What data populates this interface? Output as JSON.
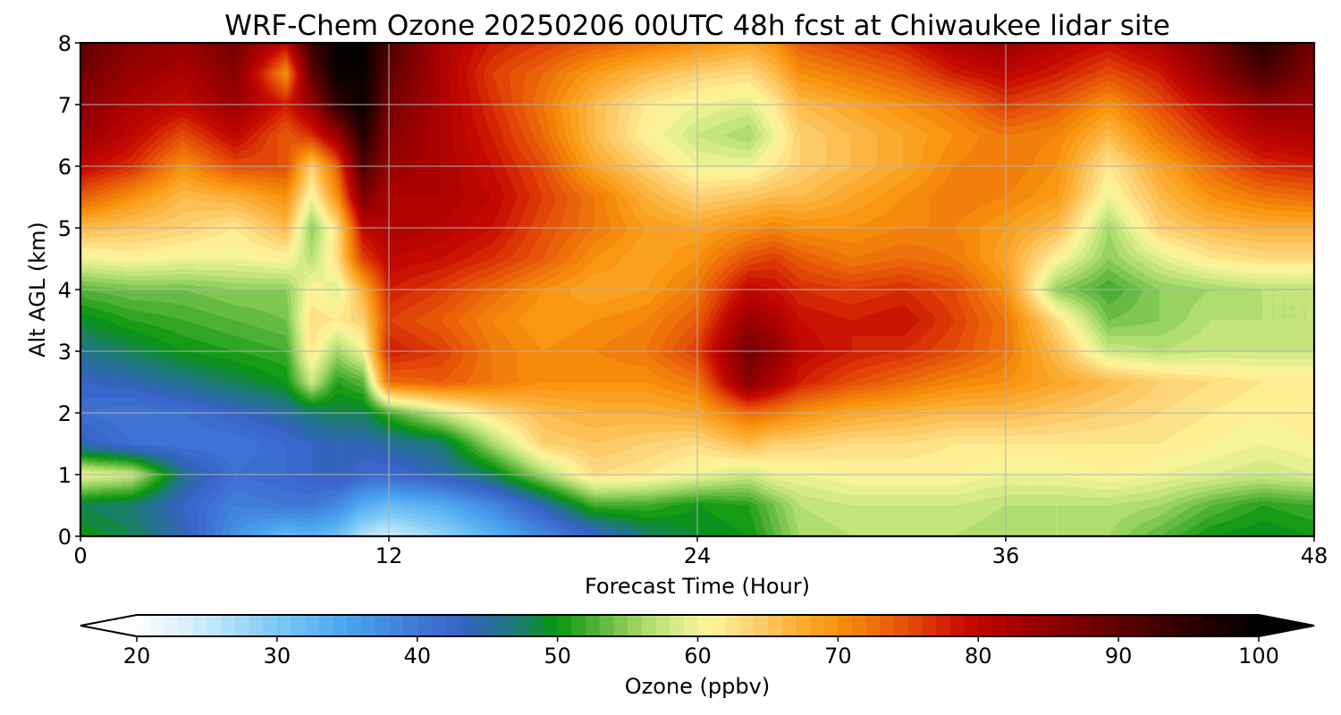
{
  "chart_data": {
    "type": "heatmap",
    "title": "WRF-Chem Ozone  20250206 00UTC 48h fcst at Chiwaukee lidar site",
    "xlabel": "Forecast Time (Hour)",
    "ylabel": "Alt AGL (km)",
    "xlim": [
      0,
      48
    ],
    "ylim": [
      0,
      8
    ],
    "x_ticks": [
      "0",
      "12",
      "24",
      "36",
      "48"
    ],
    "y_ticks": [
      "0",
      "1",
      "2",
      "3",
      "4",
      "5",
      "6",
      "7",
      "8"
    ],
    "grid": true,
    "x_hours": [
      0,
      2,
      4,
      6,
      8,
      9,
      10,
      11,
      12,
      14,
      16,
      18,
      20,
      22,
      24,
      26,
      27,
      28,
      30,
      32,
      34,
      36,
      38,
      40,
      42,
      44,
      46,
      48
    ],
    "alt_km": [
      0,
      0.5,
      1,
      1.5,
      2,
      2.5,
      3,
      3.5,
      4,
      4.5,
      5,
      5.5,
      6,
      6.5,
      7,
      7.5,
      8
    ],
    "ozone_ppbv": [
      [
        50,
        48,
        44,
        37,
        32,
        33,
        31,
        26,
        24,
        28,
        33,
        38,
        42,
        47,
        49,
        50,
        53,
        56,
        57,
        57,
        57,
        56,
        57,
        56,
        53,
        50,
        49,
        50
      ],
      [
        48,
        47,
        43,
        39,
        40,
        40,
        38,
        34,
        32,
        34,
        38,
        44,
        52,
        52,
        50,
        51,
        54,
        57,
        58,
        58,
        58,
        57,
        57,
        57,
        56,
        53,
        51,
        52
      ],
      [
        60,
        58,
        46,
        41,
        42,
        43,
        44,
        42,
        42,
        44,
        48,
        56,
        63,
        62,
        60,
        58,
        60,
        60,
        61,
        61,
        61,
        60,
        60,
        61,
        60,
        59,
        58,
        59
      ],
      [
        44,
        41,
        40,
        40,
        42,
        43,
        44,
        44,
        45,
        47,
        56,
        64,
        65,
        64,
        63,
        66,
        64,
        64,
        63,
        63,
        62,
        62,
        62,
        62,
        62,
        61,
        60,
        61
      ],
      [
        41,
        40,
        41,
        43,
        45,
        47,
        48,
        48,
        52,
        58,
        63,
        66,
        67,
        67,
        68,
        73,
        72,
        70,
        68,
        67,
        66,
        66,
        65,
        64,
        63,
        62,
        61,
        62
      ],
      [
        43,
        44,
        46,
        48,
        50,
        58,
        51,
        53,
        73,
        74,
        72,
        70,
        70,
        70,
        72,
        86,
        82,
        78,
        75,
        73,
        71,
        70,
        68,
        66,
        64,
        63,
        62,
        62
      ],
      [
        46,
        48,
        50,
        51,
        52,
        62,
        56,
        60,
        78,
        76,
        72,
        70,
        71,
        72,
        76,
        88,
        85,
        80,
        78,
        77,
        75,
        72,
        66,
        58,
        57,
        58,
        58,
        58
      ],
      [
        49,
        51,
        52,
        53,
        54,
        63,
        62,
        64,
        76,
        74,
        71,
        69,
        70,
        71,
        74,
        84,
        82,
        79,
        78,
        79,
        76,
        72,
        63,
        54,
        55,
        57,
        57,
        57
      ],
      [
        53,
        54,
        54,
        55,
        55,
        61,
        59,
        67,
        78,
        76,
        73,
        70,
        68,
        69,
        72,
        80,
        79,
        77,
        76,
        77,
        75,
        70,
        55,
        52,
        55,
        56,
        57,
        57
      ],
      [
        60,
        61,
        60,
        60,
        61,
        57,
        63,
        76,
        80,
        79,
        77,
        74,
        70,
        68,
        70,
        75,
        76,
        74,
        72,
        73,
        72,
        68,
        61,
        55,
        59,
        62,
        63,
        63
      ],
      [
        66,
        65,
        64,
        62,
        66,
        55,
        63,
        80,
        82,
        81,
        79,
        75,
        72,
        69,
        68,
        70,
        71,
        70,
        70,
        71,
        71,
        69,
        66,
        56,
        64,
        66,
        67,
        67
      ],
      [
        74,
        70,
        66,
        67,
        70,
        60,
        70,
        87,
        82,
        82,
        80,
        76,
        72,
        67,
        64,
        65,
        66,
        66,
        68,
        70,
        72,
        71,
        69,
        60,
        66,
        70,
        72,
        73
      ],
      [
        80,
        77,
        70,
        75,
        75,
        64,
        74,
        92,
        84,
        82,
        79,
        75,
        68,
        64,
        60,
        60,
        62,
        64,
        66,
        68,
        71,
        72,
        70,
        62,
        68,
        73,
        77,
        78
      ],
      [
        84,
        80,
        75,
        80,
        74,
        77,
        84,
        96,
        86,
        82,
        78,
        73,
        66,
        61,
        58,
        56,
        60,
        64,
        66,
        68,
        70,
        72,
        71,
        66,
        72,
        77,
        81,
        82
      ],
      [
        86,
        82,
        80,
        84,
        78,
        84,
        95,
        99,
        88,
        82,
        77,
        72,
        66,
        62,
        60,
        59,
        62,
        66,
        68,
        70,
        72,
        76,
        74,
        70,
        75,
        80,
        85,
        84
      ],
      [
        88,
        84,
        82,
        86,
        70,
        90,
        99,
        99,
        90,
        82,
        76,
        73,
        69,
        66,
        64,
        63,
        66,
        70,
        72,
        74,
        78,
        80,
        78,
        75,
        78,
        85,
        92,
        86
      ],
      [
        90,
        86,
        84,
        88,
        80,
        94,
        99,
        99,
        92,
        82,
        78,
        76,
        74,
        72,
        70,
        68,
        70,
        74,
        76,
        78,
        82,
        84,
        81,
        79,
        82,
        88,
        96,
        88
      ]
    ],
    "colorbar": {
      "label": "Ozone  (ppbv)",
      "min": 20,
      "max": 100,
      "ticks": [
        "20",
        "30",
        "40",
        "50",
        "60",
        "70",
        "80",
        "90",
        "100"
      ],
      "extend": "both",
      "colors": {
        "20": "#ffffff",
        "25": "#c6e9fb",
        "30": "#7cc8f5",
        "35": "#4aa6ef",
        "40": "#3f78d6",
        "43": "#3762c8",
        "47": "#1c7a78",
        "50": "#08960c",
        "53": "#58b53c",
        "56": "#a5d96a",
        "59": "#e0f08e",
        "61": "#fff59a",
        "64": "#fdd072",
        "67": "#fdb038",
        "70": "#f8920b",
        "73": "#ec6a0a",
        "76": "#df3d06",
        "79": "#c70a00",
        "83": "#a30000",
        "87": "#7d0000",
        "91": "#560000",
        "95": "#2c0000",
        "100": "#000000"
      }
    }
  }
}
